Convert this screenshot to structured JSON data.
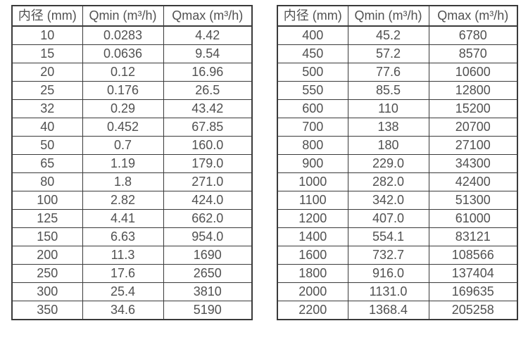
{
  "colors": {
    "border": "#3a3a3a",
    "text": "#515151",
    "background": "#ffffff"
  },
  "tables": [
    {
      "name": "flow-spec-table-small-diameters",
      "header_keys": [
        "inner-diameter",
        "qmin",
        "qmax"
      ],
      "headers": [
        "内径 (mm)",
        "Qmin (m³/h)",
        "Qmax (m³/h)"
      ],
      "rows": [
        [
          "10",
          "0.0283",
          "4.42"
        ],
        [
          "15",
          "0.0636",
          "9.54"
        ],
        [
          "20",
          "0.12",
          "16.96"
        ],
        [
          "25",
          "0.176",
          "26.5"
        ],
        [
          "32",
          "0.29",
          "43.42"
        ],
        [
          "40",
          "0.452",
          "67.85"
        ],
        [
          "50",
          "0.7",
          "160.0"
        ],
        [
          "65",
          "1.19",
          "179.0"
        ],
        [
          "80",
          "1.8",
          "271.0"
        ],
        [
          "100",
          "2.82",
          "424.0"
        ],
        [
          "125",
          "4.41",
          "662.0"
        ],
        [
          "150",
          "6.63",
          "954.0"
        ],
        [
          "200",
          "11.3",
          "1690"
        ],
        [
          "250",
          "17.6",
          "2650"
        ],
        [
          "300",
          "25.4",
          "3810"
        ],
        [
          "350",
          "34.6",
          "5190"
        ]
      ]
    },
    {
      "name": "flow-spec-table-large-diameters",
      "header_keys": [
        "inner-diameter",
        "qmin",
        "qmax"
      ],
      "headers": [
        "内径 (mm)",
        "Qmin (m³/h)",
        "Qmax (m³/h)"
      ],
      "rows": [
        [
          "400",
          "45.2",
          "6780"
        ],
        [
          "450",
          "57.2",
          "8570"
        ],
        [
          "500",
          "77.6",
          "10600"
        ],
        [
          "550",
          "85.5",
          "12800"
        ],
        [
          "600",
          "110",
          "15200"
        ],
        [
          "700",
          "138",
          "20700"
        ],
        [
          "800",
          "180",
          "27100"
        ],
        [
          "900",
          "229.0",
          "34300"
        ],
        [
          "1000",
          "282.0",
          "42400"
        ],
        [
          "1100",
          "342.0",
          "51300"
        ],
        [
          "1200",
          "407.0",
          "61000"
        ],
        [
          "1400",
          "554.1",
          "83121"
        ],
        [
          "1600",
          "732.7",
          "108566"
        ],
        [
          "1800",
          "916.0",
          "137404"
        ],
        [
          "2000",
          "1131.0",
          "169635"
        ],
        [
          "2200",
          "1368.4",
          "205258"
        ]
      ]
    }
  ]
}
